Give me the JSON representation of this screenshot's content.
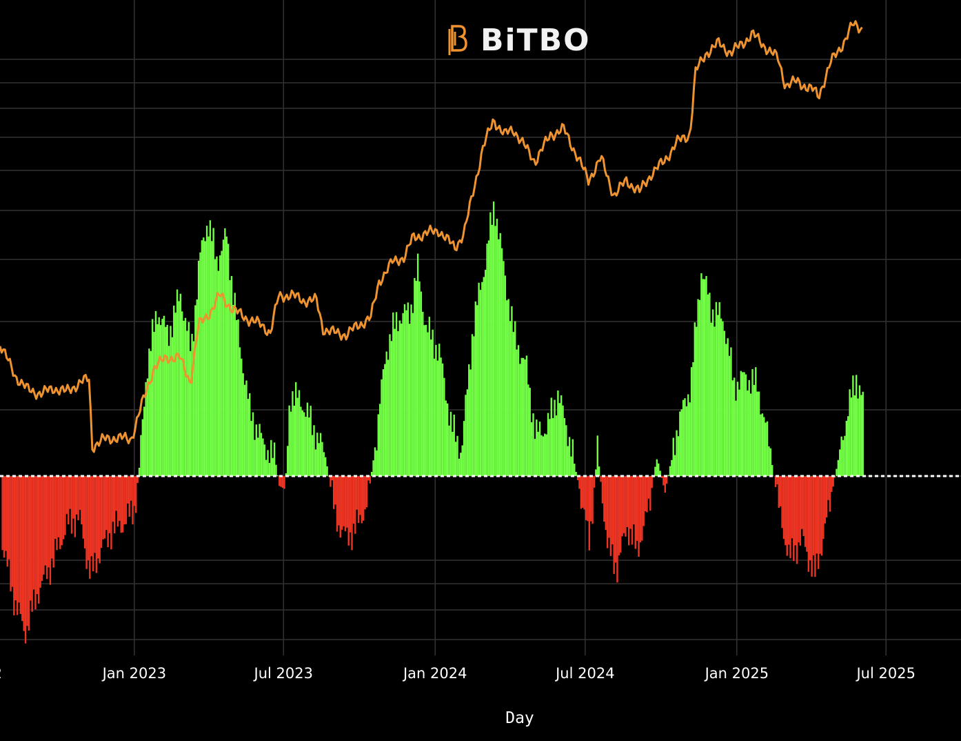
{
  "logo": {
    "text": "BiTBO"
  },
  "colors": {
    "background": "#000000",
    "grid": "#333333",
    "price_line": "#ee9330",
    "positive_bar": "#73ff45",
    "negative_bar": "#ee3524",
    "zero_line": "#ffffff"
  },
  "chart_data": {
    "type": "bar",
    "xlabel": "Day",
    "x_tick_labels": [
      "2",
      "Jan 2023",
      "Jul 2023",
      "Jan 2024",
      "Jul 2024",
      "Jan 2025",
      "Jul 2025"
    ],
    "xlim": [
      "2022-07-22",
      "2025-09-30"
    ],
    "grid": true,
    "series": [
      {
        "type": "bar",
        "unit": "momentum",
        "zero_line": "dashed white",
        "points": [
          [
            "2022-07-24",
            -0.4
          ],
          [
            "2022-08-05",
            -0.7
          ],
          [
            "2022-08-20",
            -0.95
          ],
          [
            "2022-09-05",
            -0.7
          ],
          [
            "2022-09-20",
            -0.55
          ],
          [
            "2022-10-10",
            -0.3
          ],
          [
            "2022-10-25",
            -0.25
          ],
          [
            "2022-11-08",
            -0.6
          ],
          [
            "2022-11-20",
            -0.45
          ],
          [
            "2022-12-05",
            -0.32
          ],
          [
            "2022-12-20",
            -0.28
          ],
          [
            "2023-01-01",
            -0.18
          ],
          [
            "2023-01-06",
            0.05
          ],
          [
            "2023-01-15",
            0.65
          ],
          [
            "2023-01-28",
            1.0
          ],
          [
            "2023-02-10",
            0.85
          ],
          [
            "2023-02-25",
            1.1
          ],
          [
            "2023-03-10",
            0.75
          ],
          [
            "2023-03-20",
            1.3
          ],
          [
            "2023-03-30",
            1.55
          ],
          [
            "2023-04-10",
            1.3
          ],
          [
            "2023-04-22",
            1.45
          ],
          [
            "2023-05-05",
            0.9
          ],
          [
            "2023-05-20",
            0.4
          ],
          [
            "2023-06-05",
            0.2
          ],
          [
            "2023-06-20",
            0.1
          ],
          [
            "2023-06-25",
            -0.06
          ],
          [
            "2023-07-02",
            -0.08
          ],
          [
            "2023-07-08",
            0.5
          ],
          [
            "2023-07-22",
            0.45
          ],
          [
            "2023-08-05",
            0.3
          ],
          [
            "2023-08-20",
            0.12
          ],
          [
            "2023-09-01",
            -0.25
          ],
          [
            "2023-09-15",
            -0.38
          ],
          [
            "2023-09-30",
            -0.28
          ],
          [
            "2023-10-10",
            -0.15
          ],
          [
            "2023-10-20",
            0.2
          ],
          [
            "2023-11-01",
            0.75
          ],
          [
            "2023-11-15",
            0.95
          ],
          [
            "2023-12-01",
            1.0
          ],
          [
            "2023-12-10",
            1.25
          ],
          [
            "2023-12-20",
            0.9
          ],
          [
            "2024-01-05",
            0.75
          ],
          [
            "2024-01-20",
            0.3
          ],
          [
            "2024-02-01",
            0.15
          ],
          [
            "2024-02-15",
            0.9
          ],
          [
            "2024-03-01",
            1.3
          ],
          [
            "2024-03-12",
            1.65
          ],
          [
            "2024-03-25",
            1.2
          ],
          [
            "2024-04-05",
            0.85
          ],
          [
            "2024-04-20",
            0.65
          ],
          [
            "2024-05-01",
            0.25
          ],
          [
            "2024-05-15",
            0.3
          ],
          [
            "2024-05-28",
            0.5
          ],
          [
            "2024-06-10",
            0.25
          ],
          [
            "2024-06-22",
            -0.05
          ],
          [
            "2024-07-05",
            -0.4
          ],
          [
            "2024-07-15",
            0.15
          ],
          [
            "2024-07-28",
            -0.45
          ],
          [
            "2024-08-08",
            -0.55
          ],
          [
            "2024-08-20",
            -0.3
          ],
          [
            "2024-09-01",
            -0.45
          ],
          [
            "2024-09-15",
            -0.2
          ],
          [
            "2024-09-25",
            0.12
          ],
          [
            "2024-10-05",
            -0.1
          ],
          [
            "2024-10-20",
            0.3
          ],
          [
            "2024-11-05",
            0.55
          ],
          [
            "2024-11-18",
            1.25
          ],
          [
            "2024-12-01",
            1.0
          ],
          [
            "2024-12-15",
            0.95
          ],
          [
            "2024-12-28",
            0.55
          ],
          [
            "2025-01-10",
            0.6
          ],
          [
            "2025-01-25",
            0.55
          ],
          [
            "2025-02-08",
            0.2
          ],
          [
            "2025-02-20",
            -0.2
          ],
          [
            "2025-03-05",
            -0.5
          ],
          [
            "2025-03-20",
            -0.38
          ],
          [
            "2025-04-05",
            -0.6
          ],
          [
            "2025-04-20",
            -0.25
          ],
          [
            "2025-05-05",
            0.15
          ],
          [
            "2025-05-15",
            0.4
          ],
          [
            "2025-05-25",
            0.6
          ],
          [
            "2025-06-02",
            0.45
          ]
        ]
      },
      {
        "type": "line",
        "unit": "price",
        "points": [
          [
            "2022-07-22",
            0.62
          ],
          [
            "2022-08-10",
            0.45
          ],
          [
            "2022-08-25",
            0.38
          ],
          [
            "2022-09-10",
            0.36
          ],
          [
            "2022-09-25",
            0.39
          ],
          [
            "2022-10-10",
            0.37
          ],
          [
            "2022-10-28",
            0.42
          ],
          [
            "2022-11-08",
            0.44
          ],
          [
            "2022-11-10",
            0.08
          ],
          [
            "2022-11-25",
            0.12
          ],
          [
            "2022-12-10",
            0.13
          ],
          [
            "2022-12-28",
            0.12
          ],
          [
            "2023-01-10",
            0.3
          ],
          [
            "2023-01-25",
            0.5
          ],
          [
            "2023-02-10",
            0.55
          ],
          [
            "2023-02-25",
            0.55
          ],
          [
            "2023-03-10",
            0.42
          ],
          [
            "2023-03-20",
            0.72
          ],
          [
            "2023-04-05",
            0.8
          ],
          [
            "2023-04-15",
            0.88
          ],
          [
            "2023-05-01",
            0.8
          ],
          [
            "2023-05-20",
            0.75
          ],
          [
            "2023-06-05",
            0.72
          ],
          [
            "2023-06-15",
            0.68
          ],
          [
            "2023-06-25",
            0.87
          ],
          [
            "2023-07-10",
            0.88
          ],
          [
            "2023-07-25",
            0.85
          ],
          [
            "2023-08-10",
            0.85
          ],
          [
            "2023-08-18",
            0.7
          ],
          [
            "2023-09-01",
            0.68
          ],
          [
            "2023-09-15",
            0.67
          ],
          [
            "2023-09-30",
            0.72
          ],
          [
            "2023-10-15",
            0.76
          ],
          [
            "2023-10-25",
            0.95
          ],
          [
            "2023-11-10",
            1.05
          ],
          [
            "2023-11-25",
            1.08
          ],
          [
            "2023-12-05",
            1.18
          ],
          [
            "2023-12-20",
            1.2
          ],
          [
            "2024-01-05",
            1.22
          ],
          [
            "2024-01-15",
            1.17
          ],
          [
            "2024-01-25",
            1.13
          ],
          [
            "2024-02-05",
            1.2
          ],
          [
            "2024-02-15",
            1.4
          ],
          [
            "2024-02-28",
            1.65
          ],
          [
            "2024-03-12",
            1.8
          ],
          [
            "2024-03-25",
            1.72
          ],
          [
            "2024-04-05",
            1.75
          ],
          [
            "2024-04-20",
            1.65
          ],
          [
            "2024-05-01",
            1.58
          ],
          [
            "2024-05-20",
            1.72
          ],
          [
            "2024-06-05",
            1.75
          ],
          [
            "2024-06-20",
            1.62
          ],
          [
            "2024-07-05",
            1.48
          ],
          [
            "2024-07-20",
            1.6
          ],
          [
            "2024-08-05",
            1.4
          ],
          [
            "2024-08-20",
            1.48
          ],
          [
            "2024-09-05",
            1.42
          ],
          [
            "2024-09-20",
            1.52
          ],
          [
            "2024-10-05",
            1.58
          ],
          [
            "2024-10-20",
            1.68
          ],
          [
            "2024-11-05",
            1.72
          ],
          [
            "2024-11-12",
            2.05
          ],
          [
            "2024-11-25",
            2.15
          ],
          [
            "2024-12-10",
            2.2
          ],
          [
            "2024-12-25",
            2.15
          ],
          [
            "2025-01-08",
            2.2
          ],
          [
            "2025-01-20",
            2.25
          ],
          [
            "2025-02-05",
            2.18
          ],
          [
            "2025-02-20",
            2.12
          ],
          [
            "2025-03-01",
            1.98
          ],
          [
            "2025-03-15",
            2.0
          ],
          [
            "2025-04-05",
            1.95
          ],
          [
            "2025-04-10",
            1.92
          ],
          [
            "2025-04-25",
            2.1
          ],
          [
            "2025-05-10",
            2.2
          ],
          [
            "2025-05-22",
            2.3
          ],
          [
            "2025-06-02",
            2.28
          ]
        ]
      }
    ]
  }
}
